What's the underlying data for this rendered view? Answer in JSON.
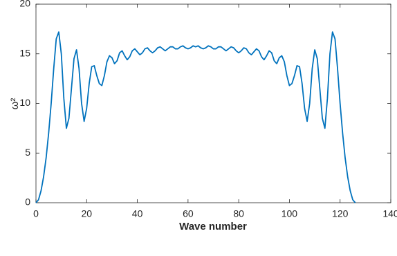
{
  "chart_data": {
    "type": "line",
    "xlabel": "Wave number",
    "ylabel": "ω²",
    "x": [
      0,
      1,
      2,
      3,
      4,
      5,
      6,
      7,
      8,
      9,
      10,
      11,
      12,
      13,
      14,
      15,
      16,
      17,
      18,
      19,
      20,
      21,
      22,
      23,
      24,
      25,
      26,
      27,
      28,
      29,
      30,
      31,
      32,
      33,
      34,
      35,
      36,
      37,
      38,
      39,
      40,
      41,
      42,
      43,
      44,
      45,
      46,
      47,
      48,
      49,
      50,
      51,
      52,
      53,
      54,
      55,
      56,
      57,
      58,
      59,
      60,
      61,
      62,
      63,
      64,
      65,
      66,
      67,
      68,
      69,
      70,
      71,
      72,
      73,
      74,
      75,
      76,
      77,
      78,
      79,
      80,
      81,
      82,
      83,
      84,
      85,
      86,
      87,
      88,
      89,
      90,
      91,
      92,
      93,
      94,
      95,
      96,
      97,
      98,
      99,
      100,
      101,
      102,
      103,
      104,
      105,
      106,
      107,
      108,
      109,
      110,
      111,
      112,
      113,
      114,
      115,
      116,
      117,
      118,
      119,
      120,
      121,
      122,
      123,
      124,
      125,
      126
    ],
    "series": [
      {
        "color": "#0072bd",
        "values": [
          0,
          0.3,
          1.2,
          2.6,
          4.5,
          7.0,
          10.0,
          13.5,
          16.5,
          17.2,
          15.0,
          10.5,
          7.5,
          8.5,
          11.5,
          14.5,
          15.4,
          13.5,
          10.0,
          8.2,
          9.5,
          12.0,
          13.7,
          13.8,
          12.8,
          12.0,
          11.8,
          12.8,
          14.2,
          14.8,
          14.6,
          14.0,
          14.3,
          15.1,
          15.3,
          14.8,
          14.4,
          14.7,
          15.3,
          15.5,
          15.2,
          14.9,
          15.1,
          15.5,
          15.6,
          15.3,
          15.1,
          15.3,
          15.6,
          15.7,
          15.5,
          15.3,
          15.5,
          15.7,
          15.7,
          15.5,
          15.5,
          15.7,
          15.8,
          15.6,
          15.5,
          15.6,
          15.8,
          15.7,
          15.8,
          15.6,
          15.5,
          15.6,
          15.8,
          15.7,
          15.5,
          15.5,
          15.7,
          15.7,
          15.5,
          15.3,
          15.5,
          15.7,
          15.6,
          15.3,
          15.1,
          15.3,
          15.6,
          15.5,
          15.1,
          14.9,
          15.2,
          15.5,
          15.3,
          14.7,
          14.4,
          14.8,
          15.3,
          15.1,
          14.3,
          14.0,
          14.6,
          14.8,
          14.2,
          12.8,
          11.8,
          12.0,
          12.8,
          13.8,
          13.7,
          12.0,
          9.5,
          8.2,
          10.0,
          13.5,
          15.4,
          14.5,
          11.5,
          8.5,
          7.5,
          10.5,
          15.0,
          17.2,
          16.5,
          13.5,
          10.0,
          7.0,
          4.5,
          2.6,
          1.2,
          0.3,
          0
        ]
      }
    ],
    "xlim": [
      0,
      140
    ],
    "xticks": [
      0,
      20,
      40,
      60,
      80,
      100,
      120,
      140
    ],
    "ylim": [
      0,
      20
    ],
    "yticks": [
      0,
      5,
      10,
      15,
      20
    ]
  }
}
